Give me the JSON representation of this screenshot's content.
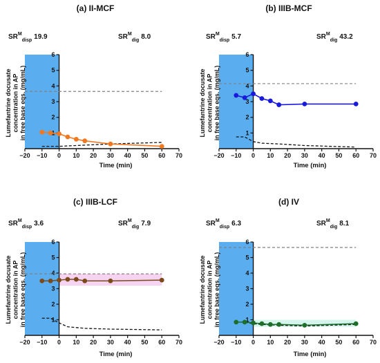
{
  "chart_data": [
    {
      "type": "line",
      "title": "(a) II-MCF",
      "sr_disp": "19.9",
      "sr_dig": "8.0",
      "sr_label": "SR",
      "sr_sup": "M",
      "sr_sub_disp": "disp",
      "sr_sub_dig": "dig",
      "ylabel_lines": [
        "Lumefantrine docusate",
        "concentration in AP",
        "in free base eqs. (mg/mL)"
      ],
      "xlabel": "Time (min)",
      "xlim": [
        -20,
        70
      ],
      "ylim": [
        0,
        6
      ],
      "xticks": [
        "-20",
        "-10",
        "0",
        "10",
        "20",
        "30",
        "40",
        "50",
        "60",
        "70"
      ],
      "yticks": [
        "1",
        "2",
        "3",
        "4",
        "5",
        "6"
      ],
      "shade_range": [
        -20,
        0
      ],
      "series_color": "#f07820",
      "series": [
        {
          "x": [
            -10,
            -5,
            0,
            5,
            10,
            15,
            30,
            60
          ],
          "values": [
            1.05,
            1.0,
            0.95,
            0.75,
            0.6,
            0.5,
            0.3,
            0.15
          ]
        }
      ],
      "reference_lines": [
        {
          "style": "gray-dashed",
          "x": [
            -20,
            60
          ],
          "values": [
            3.65,
            3.65
          ]
        },
        {
          "style": "black-dashed",
          "x": [
            -10,
            0,
            10,
            30,
            60
          ],
          "values": [
            0.15,
            0.15,
            0.2,
            0.3,
            0.4
          ]
        }
      ]
    },
    {
      "type": "line",
      "title": "(b) IIIB-MCF",
      "sr_disp": "5.7",
      "sr_dig": "43.2",
      "sr_label": "SR",
      "sr_sup": "M",
      "sr_sub_disp": "disp",
      "sr_sub_dig": "dig",
      "ylabel_lines": [
        "Lumefantrine docusate",
        "concentration in AP",
        "in free base eqs. (mg/mL)"
      ],
      "xlabel": "Time (min)",
      "xlim": [
        -20,
        70
      ],
      "ylim": [
        0,
        6
      ],
      "xticks": [
        "-20",
        "-10",
        "0",
        "10",
        "20",
        "30",
        "40",
        "50",
        "60",
        "70"
      ],
      "yticks": [
        "1",
        "2",
        "3",
        "4",
        "5",
        "6"
      ],
      "shade_range": [
        -20,
        0
      ],
      "series_color": "#1a1adc",
      "series": [
        {
          "x": [
            -10,
            -5,
            0,
            5,
            10,
            15,
            30,
            60
          ],
          "values": [
            3.4,
            3.25,
            3.5,
            3.2,
            3.05,
            2.8,
            2.85,
            2.85
          ]
        }
      ],
      "reference_lines": [
        {
          "style": "gray-dashed",
          "x": [
            -20,
            60
          ],
          "values": [
            4.15,
            4.15
          ]
        },
        {
          "style": "black-dashed",
          "x": [
            -10,
            -5,
            0,
            5,
            15,
            30,
            60
          ],
          "values": [
            0.75,
            0.75,
            0.45,
            0.35,
            0.3,
            0.2,
            0.1
          ]
        }
      ]
    },
    {
      "type": "line",
      "title": "(c) IIIB-LCF",
      "sr_disp": "3.6",
      "sr_dig": "7.9",
      "sr_label": "SR",
      "sr_sup": "M",
      "sr_sub_disp": "disp",
      "sr_sub_dig": "dig",
      "ylabel_lines": [
        "Lumefantrine docusate",
        "concentration in AP",
        "in free base eqs. (mg/mL)"
      ],
      "xlabel": "Time (min)",
      "xlim": [
        -20,
        70
      ],
      "ylim": [
        0,
        6
      ],
      "xticks": [
        "-20",
        "-10",
        "0",
        "10",
        "20",
        "30",
        "40",
        "50",
        "60",
        "70"
      ],
      "yticks": [
        "1",
        "2",
        "3",
        "4",
        "5",
        "6"
      ],
      "shade_range": [
        -20,
        0
      ],
      "series_color": "#7a4a1a",
      "series": [
        {
          "x": [
            -10,
            -5,
            0,
            5,
            10,
            15,
            30,
            60
          ],
          "values": [
            3.5,
            3.5,
            3.55,
            3.6,
            3.6,
            3.5,
            3.5,
            3.55
          ]
        }
      ],
      "reference_lines": [
        {
          "style": "gray-dashed",
          "x": [
            -20,
            60
          ],
          "values": [
            3.95,
            3.95
          ]
        },
        {
          "style": "black-dashed",
          "x": [
            -10,
            -5,
            0,
            5,
            15,
            30,
            60
          ],
          "values": [
            1.1,
            1.1,
            0.8,
            0.55,
            0.45,
            0.4,
            0.35
          ]
        }
      ]
    },
    {
      "type": "line",
      "title": "(d) IV",
      "sr_disp": "6.3",
      "sr_dig": "8.1",
      "sr_label": "SR",
      "sr_sup": "M",
      "sr_sub_disp": "disp",
      "sr_sub_dig": "dig",
      "ylabel_lines": [
        "Lumefantrine docusate",
        "concentration in AP",
        "in free base eqs. (mg/mL)"
      ],
      "xlabel": "Time (min)",
      "xlim": [
        -20,
        70
      ],
      "ylim": [
        0,
        6
      ],
      "xticks": [
        "-20",
        "-10",
        "0",
        "10",
        "20",
        "30",
        "40",
        "50",
        "60",
        "70"
      ],
      "yticks": [
        "1",
        "2",
        "3",
        "4",
        "5",
        "6"
      ],
      "shade_range": [
        -20,
        0
      ],
      "series_color": "#1e6e2a",
      "series": [
        {
          "x": [
            -10,
            -5,
            0,
            5,
            10,
            15,
            30,
            60
          ],
          "values": [
            0.85,
            0.85,
            0.8,
            0.75,
            0.7,
            0.7,
            0.65,
            0.75
          ]
        }
      ],
      "reference_lines": [
        {
          "style": "gray-dashed",
          "x": [
            -20,
            60
          ],
          "values": [
            5.65,
            5.65
          ]
        },
        {
          "style": "black-dashed",
          "x": [
            -10,
            -5,
            0,
            5,
            15,
            30,
            60
          ],
          "values": [
            0.85,
            0.85,
            0.75,
            0.7,
            0.65,
            0.6,
            0.7
          ]
        }
      ]
    }
  ]
}
